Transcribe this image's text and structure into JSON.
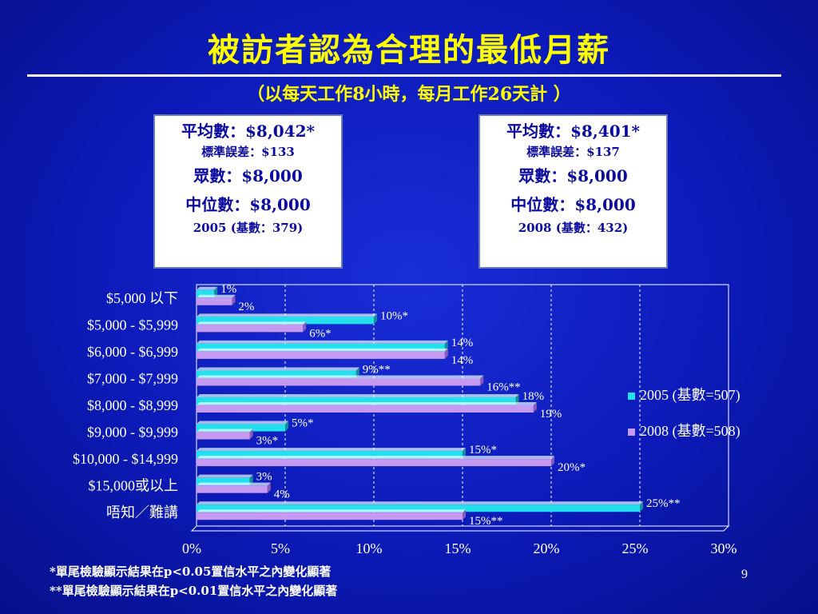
{
  "title": "被訪者認為合理的最低月薪",
  "subtitle": "（以每天工作8小時，每月工作26天計 ）",
  "boxes": [
    {
      "mean": "平均數：$8,042*",
      "se": "標準誤差：$133",
      "mode": "眾數：$8,000",
      "median": "中位數：$8,000",
      "base": "2005 (基數：379)"
    },
    {
      "mean": "平均數：$8,401*",
      "se": "標準誤差：$137",
      "mode": "眾數：$8,000",
      "median": "中位數：$8,000",
      "base": "2008 (基數：432)"
    }
  ],
  "footnotes": [
    "*單尾檢驗顯示結果在p<0.05置信水平之內變化顯著",
    "**單尾檢驗顯示結果在p<0.01置信水平之內變化顯著"
  ],
  "page_number": "9",
  "colors": {
    "series2005": "#22e0ee",
    "series2008": "#c79af2",
    "background": "#0c1ab8",
    "title": "#ffff00"
  },
  "chart_data": {
    "type": "bar",
    "orientation": "horizontal",
    "categories": [
      "$5,000 以下",
      "$5,000 - $5,999",
      "$6,000 - $6,999",
      "$7,000 - $7,999",
      "$8,000 - $8,999",
      "$9,000 - $9,999",
      "$10,000 - $14,999",
      "$15,000或以上",
      "唔知／難講"
    ],
    "series": [
      {
        "name": "2005 (基數=507)",
        "values": [
          1,
          10,
          14,
          9,
          18,
          5,
          15,
          3,
          25
        ],
        "labels": [
          "1%",
          "10%*",
          "14%",
          "9%**",
          "18%",
          "5%*",
          "15%*",
          "3%",
          "25%**"
        ]
      },
      {
        "name": "2008 (基數=508)",
        "values": [
          2,
          6,
          14,
          16,
          19,
          3,
          20,
          4,
          15
        ],
        "labels": [
          "2%",
          "6%*",
          "14%",
          "16%**",
          "19%",
          "3%*",
          "20%*",
          "4%",
          "15%**"
        ]
      }
    ],
    "xlim": [
      0,
      30
    ],
    "xticks": [
      "0%",
      "5%",
      "10%",
      "15%",
      "20%",
      "25%",
      "30%"
    ],
    "grid": true,
    "legend": "right"
  }
}
